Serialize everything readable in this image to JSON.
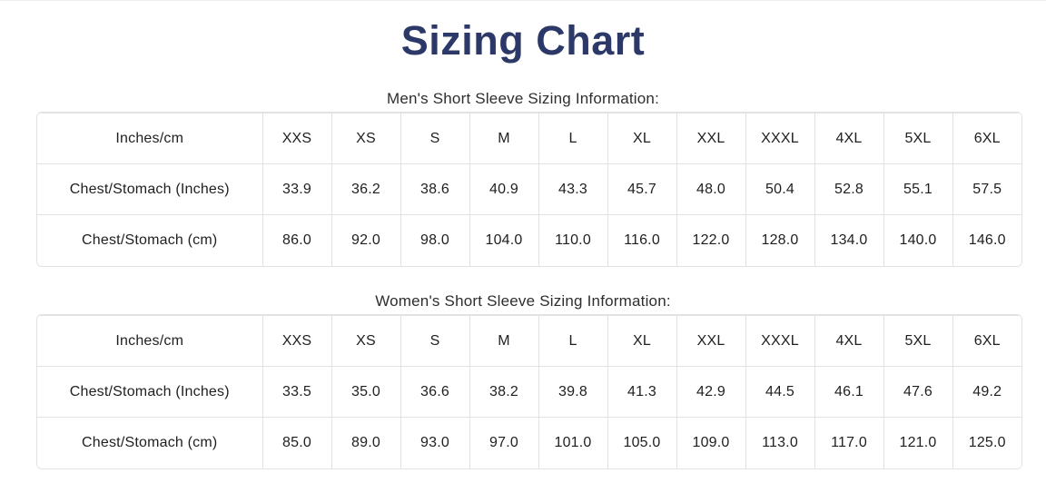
{
  "page": {
    "title": "Sizing Chart",
    "colors": {
      "title": "#2c3968",
      "heading": "#2e2e2e",
      "cell_text": "#1f1f1f",
      "table_border": "#e2e2e2",
      "background": "#ffffff"
    }
  },
  "sections": [
    {
      "heading": "Men's Short Sleeve Sizing Information:",
      "columns": [
        "Inches/cm",
        "XXS",
        "XS",
        "S",
        "M",
        "L",
        "XL",
        "XXL",
        "XXXL",
        "4XL",
        "5XL",
        "6XL"
      ],
      "rows": [
        {
          "label": "Chest/Stomach (Inches)",
          "values": [
            "33.9",
            "36.2",
            "38.6",
            "40.9",
            "43.3",
            "45.7",
            "48.0",
            "50.4",
            "52.8",
            "55.1",
            "57.5"
          ]
        },
        {
          "label": "Chest/Stomach (cm)",
          "values": [
            "86.0",
            "92.0",
            "98.0",
            "104.0",
            "110.0",
            "116.0",
            "122.0",
            "128.0",
            "134.0",
            "140.0",
            "146.0"
          ]
        }
      ]
    },
    {
      "heading": "Women's Short Sleeve Sizing Information:",
      "columns": [
        "Inches/cm",
        "XXS",
        "XS",
        "S",
        "M",
        "L",
        "XL",
        "XXL",
        "XXXL",
        "4XL",
        "5XL",
        "6XL"
      ],
      "rows": [
        {
          "label": "Chest/Stomach (Inches)",
          "values": [
            "33.5",
            "35.0",
            "36.6",
            "38.2",
            "39.8",
            "41.3",
            "42.9",
            "44.5",
            "46.1",
            "47.6",
            "49.2"
          ]
        },
        {
          "label": "Chest/Stomach (cm)",
          "values": [
            "85.0",
            "89.0",
            "93.0",
            "97.0",
            "101.0",
            "105.0",
            "109.0",
            "113.0",
            "117.0",
            "121.0",
            "125.0"
          ]
        }
      ]
    }
  ]
}
